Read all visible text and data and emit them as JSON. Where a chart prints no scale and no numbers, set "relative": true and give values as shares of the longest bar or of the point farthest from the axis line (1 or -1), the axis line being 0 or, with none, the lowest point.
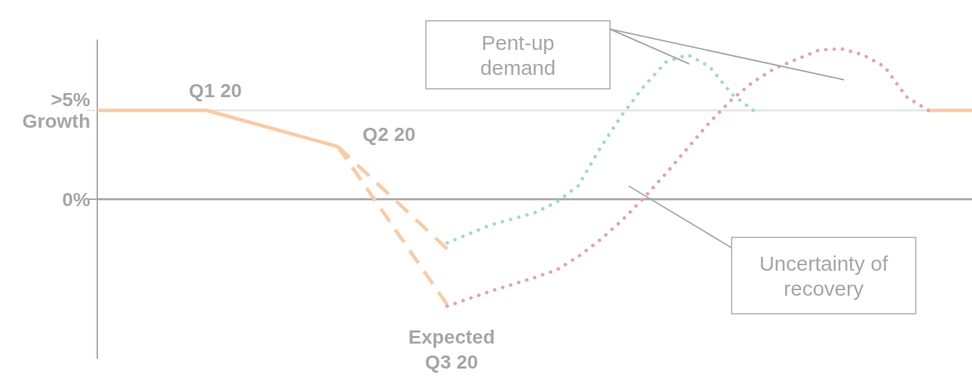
{
  "chart_data": {
    "type": "line",
    "relative": true,
    "categories": [
      null,
      null,
      null,
      null,
      null,
      null,
      null,
      null,
      null,
      null,
      null,
      null,
      null,
      null,
      null,
      null,
      null,
      null,
      null,
      null,
      null,
      null,
      null,
      null,
      null,
      null,
      null,
      null,
      null,
      null,
      null,
      null,
      null,
      null,
      null,
      null,
      null,
      null,
      null,
      null,
      null
    ],
    "marker": "none",
    "series": [
      {
        "color": "#f8cba6",
        "line_style": "solid",
        "values": [
          0.59,
          null,
          null,
          null,
          null,
          0.59,
          null,
          null,
          null,
          null,
          null,
          0.35,
          null,
          null,
          null,
          null,
          null,
          null,
          null,
          null,
          null,
          null,
          null,
          null,
          null,
          null,
          null,
          null,
          null,
          null,
          null,
          null,
          null,
          null,
          null,
          null,
          null,
          null,
          null,
          null,
          null
        ]
      },
      {
        "color": "#f8cba6",
        "line_style": "solid",
        "values": [
          null,
          null,
          null,
          null,
          null,
          null,
          null,
          null,
          null,
          null,
          null,
          null,
          null,
          null,
          null,
          null,
          null,
          null,
          null,
          null,
          null,
          null,
          null,
          null,
          null,
          null,
          null,
          null,
          null,
          null,
          null,
          null,
          null,
          null,
          null,
          null,
          null,
          null,
          0.59,
          null,
          0.59
        ]
      },
      {
        "color": "#f8cba6",
        "line_style": "dashed",
        "values": [
          null,
          null,
          null,
          null,
          null,
          null,
          null,
          null,
          null,
          null,
          null,
          0.35,
          null,
          null,
          null,
          null,
          -0.7,
          null,
          null,
          null,
          null,
          null,
          null,
          null,
          null,
          null,
          null,
          null,
          null,
          null,
          null,
          null,
          null,
          null,
          null,
          null,
          null,
          null,
          null,
          null,
          null
        ]
      },
      {
        "color": "#f8cba6",
        "line_style": "dashed",
        "values": [
          null,
          null,
          null,
          null,
          null,
          null,
          null,
          null,
          null,
          null,
          null,
          0.35,
          null,
          null,
          null,
          null,
          -0.33,
          null,
          null,
          null,
          null,
          null,
          null,
          null,
          null,
          null,
          null,
          null,
          null,
          null,
          null,
          null,
          null,
          null,
          null,
          null,
          null,
          null,
          null,
          null,
          null
        ]
      },
      {
        "color": "#9fd8d8",
        "line_style": "dotted",
        "values": [
          null,
          null,
          null,
          null,
          null,
          null,
          null,
          null,
          null,
          null,
          null,
          null,
          null,
          null,
          null,
          null,
          -0.29,
          null,
          -0.17,
          null,
          -0.09,
          -0.02,
          0.09,
          0.34,
          0.56,
          0.75,
          0.91,
          0.96,
          0.88,
          0.7,
          0.59,
          null,
          null,
          null,
          null,
          null,
          null,
          null,
          null,
          null,
          null
        ]
      },
      {
        "color": "#e6a0b8",
        "line_style": "dotted",
        "values": [
          null,
          null,
          null,
          null,
          null,
          null,
          null,
          null,
          null,
          null,
          null,
          null,
          null,
          null,
          null,
          null,
          -0.71,
          null,
          -0.61,
          null,
          -0.52,
          -0.47,
          -0.38,
          -0.27,
          -0.14,
          0.01,
          0.17,
          0.34,
          0.51,
          0.66,
          0.78,
          0.87,
          0.93,
          0.99,
          1,
          0.96,
          0.88,
          0.68,
          0.59,
          null,
          null
        ]
      }
    ],
    "ref_lines": [
      {
        "axis": "y",
        "value": 0,
        "label": "0%",
        "color": "#a6a6a6"
      },
      {
        "axis": "y",
        "value": 0.59,
        "label": ">5% Growth",
        "color": "#e6e6e6"
      }
    ],
    "annotations": [
      "Q1 20",
      "Q2 20",
      "Expected Q3 20",
      "Pent-up demand",
      "Uncertainty of recovery"
    ]
  }
}
